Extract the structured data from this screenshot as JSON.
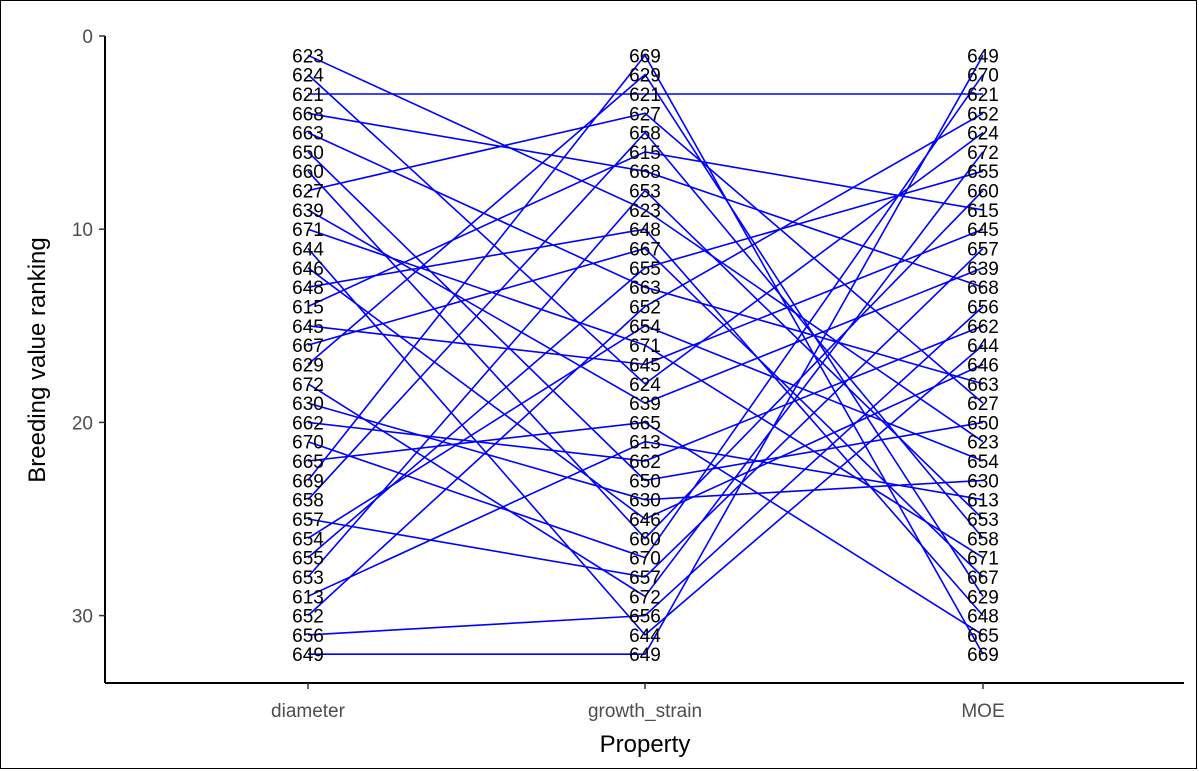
{
  "chart_data": {
    "type": "line",
    "xlabel": "Property",
    "ylabel": "Breeding value ranking",
    "categories": [
      "diameter",
      "growth_strain",
      "MOE"
    ],
    "y_ticks": [
      0,
      10,
      20,
      30
    ],
    "ylim": [
      0,
      33
    ],
    "y_reversed": true,
    "grid": false,
    "line_color": "#0000ff",
    "rankings": {
      "diameter": [
        "623",
        "624",
        "621",
        "668",
        "663",
        "650",
        "660",
        "627",
        "639",
        "671",
        "644",
        "646",
        "648",
        "615",
        "645",
        "667",
        "629",
        "672",
        "630",
        "662",
        "670",
        "665",
        "669",
        "658",
        "657",
        "654",
        "655",
        "653",
        "613",
        "652",
        "656",
        "649"
      ],
      "growth_strain": [
        "669",
        "629",
        "621",
        "627",
        "658",
        "615",
        "668",
        "653",
        "623",
        "648",
        "667",
        "655",
        "663",
        "652",
        "654",
        "671",
        "645",
        "624",
        "639",
        "665",
        "613",
        "662",
        "650",
        "630",
        "646",
        "660",
        "670",
        "657",
        "672",
        "656",
        "644",
        "649"
      ],
      "MOE": [
        "649",
        "670",
        "621",
        "652",
        "624",
        "672",
        "655",
        "660",
        "615",
        "645",
        "657",
        "639",
        "668",
        "656",
        "662",
        "644",
        "646",
        "663",
        "627",
        "650",
        "623",
        "654",
        "630",
        "613",
        "653",
        "658",
        "671",
        "667",
        "629",
        "648",
        "665",
        "669"
      ]
    }
  }
}
